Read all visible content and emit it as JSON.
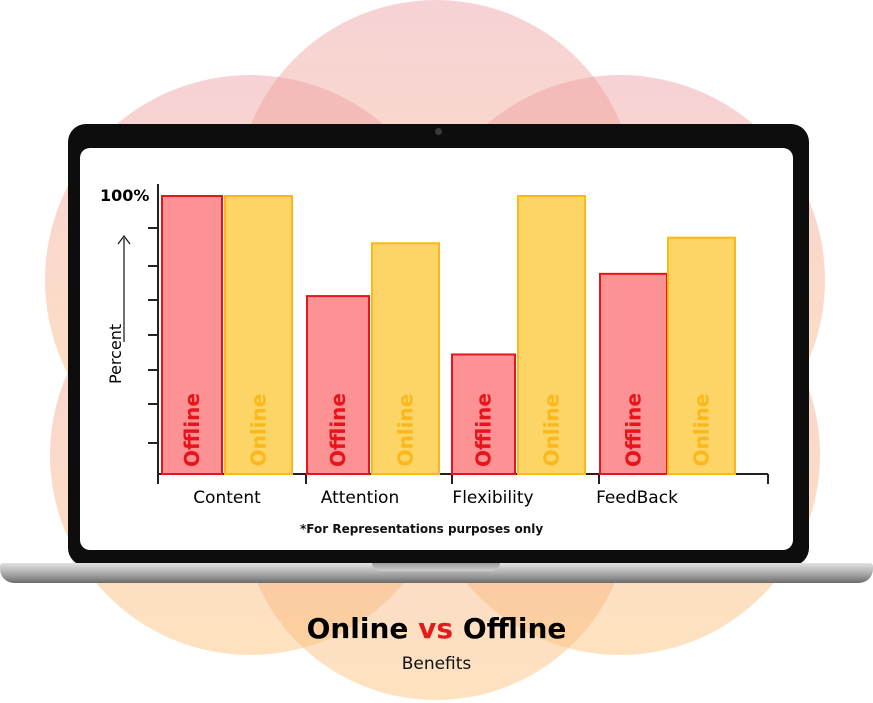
{
  "colors": {
    "offline_fill": "#fd9294",
    "offline_stroke": "#e8141b",
    "offline_text": "#e8141b",
    "online_fill": "#fdd466",
    "online_stroke": "#fbb81a",
    "online_text": "#fbb81a",
    "background_circles": "#f3b7a6",
    "title_vs": "#e21b1b"
  },
  "chart_data": {
    "type": "bar",
    "categories": [
      "Content",
      "Attention",
      "Flexibility",
      "FeedBack"
    ],
    "series": [
      {
        "name": "Offline",
        "values": [
          100,
          64,
          43,
          72
        ]
      },
      {
        "name": "Online",
        "values": [
          100,
          83,
          100,
          85
        ]
      }
    ],
    "y_top_label": "100%",
    "ylabel": "Percent",
    "ylim": [
      0,
      100
    ],
    "grid": false,
    "legend": "none",
    "bar_labels": [
      "Offline",
      "Online"
    ],
    "footnote": "*For Representations purposes only"
  },
  "title": {
    "part1": "Online",
    "part2": "vs",
    "part3": "Offline"
  },
  "subtitle": "Benefits"
}
